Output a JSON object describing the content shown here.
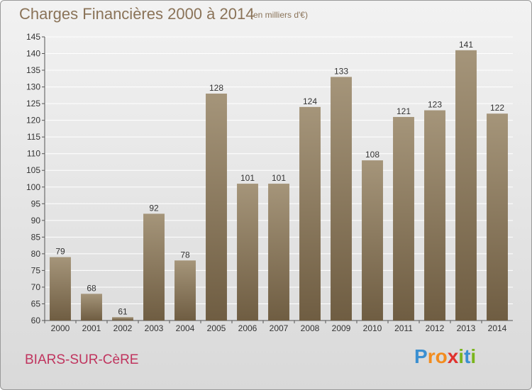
{
  "title": "Charges Financières 2000 à 2014",
  "subtitle": "(en milliers d'€)",
  "commune": "BIARS-SUR-CèRE",
  "logo": {
    "letters": [
      "P",
      "r",
      "o",
      "x",
      "i",
      "t",
      "i"
    ],
    "colors": [
      "#3a8fd1",
      "#f28c1e",
      "#f28c1e",
      "#e0322e",
      "#7ab51d",
      "#3a8fd1",
      "#7ab51d"
    ]
  },
  "colors": {
    "bar_top": "#a5957a",
    "bar_bottom": "#6f5d42",
    "grid": "#ffffff",
    "axis_text": "#333333"
  },
  "chart_data": {
    "type": "bar",
    "categories": [
      "2000",
      "2001",
      "2002",
      "2003",
      "2004",
      "2005",
      "2006",
      "2007",
      "2008",
      "2009",
      "2010",
      "2011",
      "2012",
      "2013",
      "2014"
    ],
    "values": [
      79,
      68,
      61,
      92,
      78,
      128,
      101,
      101,
      124,
      133,
      108,
      121,
      123,
      141,
      122
    ],
    "yticks": [
      60,
      65,
      70,
      75,
      80,
      85,
      90,
      95,
      100,
      105,
      110,
      115,
      120,
      125,
      130,
      135,
      140,
      145
    ],
    "ylim": [
      60,
      145
    ],
    "grid": true,
    "legend": "none"
  }
}
